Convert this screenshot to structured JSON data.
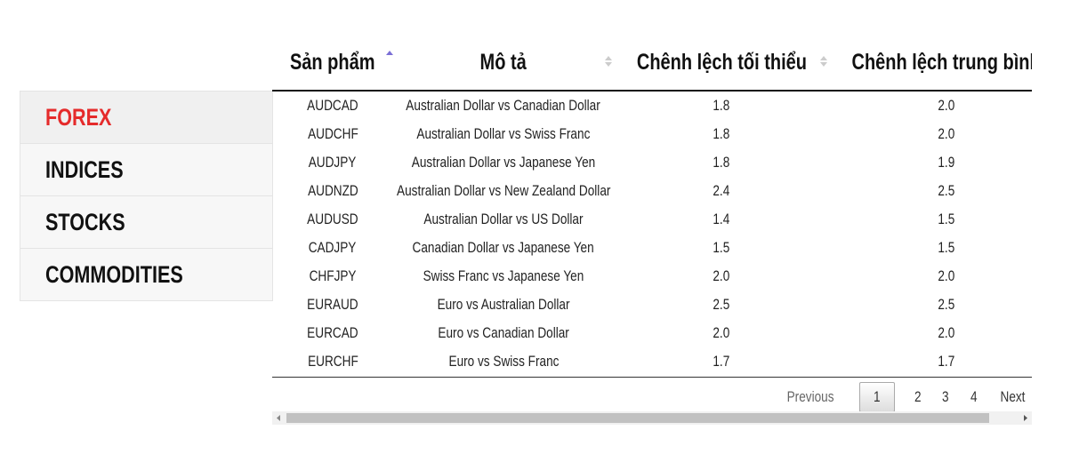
{
  "sidebar": [
    "FOREX",
    "INDICES",
    "STOCKS",
    "COMMODITIES"
  ],
  "table": {
    "headers": [
      "Sản phẩm",
      "Mô tả",
      "Chênh lệch tối thiểu",
      "Chênh lệch trung bình"
    ],
    "rows": [
      [
        "AUDCAD",
        "Australian Dollar vs Canadian Dollar",
        "1.8",
        "2.0"
      ],
      [
        "AUDCHF",
        "Australian Dollar vs Swiss Franc",
        "1.8",
        "2.0"
      ],
      [
        "AUDJPY",
        "Australian Dollar vs Japanese Yen",
        "1.8",
        "1.9"
      ],
      [
        "AUDNZD",
        "Australian Dollar vs New Zealand Dollar",
        "2.4",
        "2.5"
      ],
      [
        "AUDUSD",
        "Australian Dollar vs US Dollar",
        "1.4",
        "1.5"
      ],
      [
        "CADJPY",
        "Canadian Dollar vs Japanese Yen",
        "1.5",
        "1.5"
      ],
      [
        "CHFJPY",
        "Swiss Franc vs Japanese Yen",
        "2.0",
        "2.0"
      ],
      [
        "EURAUD",
        "Euro vs Australian Dollar",
        "2.5",
        "2.5"
      ],
      [
        "EURCAD",
        "Euro vs Canadian Dollar",
        "2.0",
        "2.0"
      ],
      [
        "EURCHF",
        "Euro vs Swiss Franc",
        "1.7",
        "1.7"
      ]
    ]
  },
  "pagination": {
    "previous": "Previous",
    "pages": [
      "1",
      "2",
      "3",
      "4"
    ],
    "next": "Next"
  }
}
